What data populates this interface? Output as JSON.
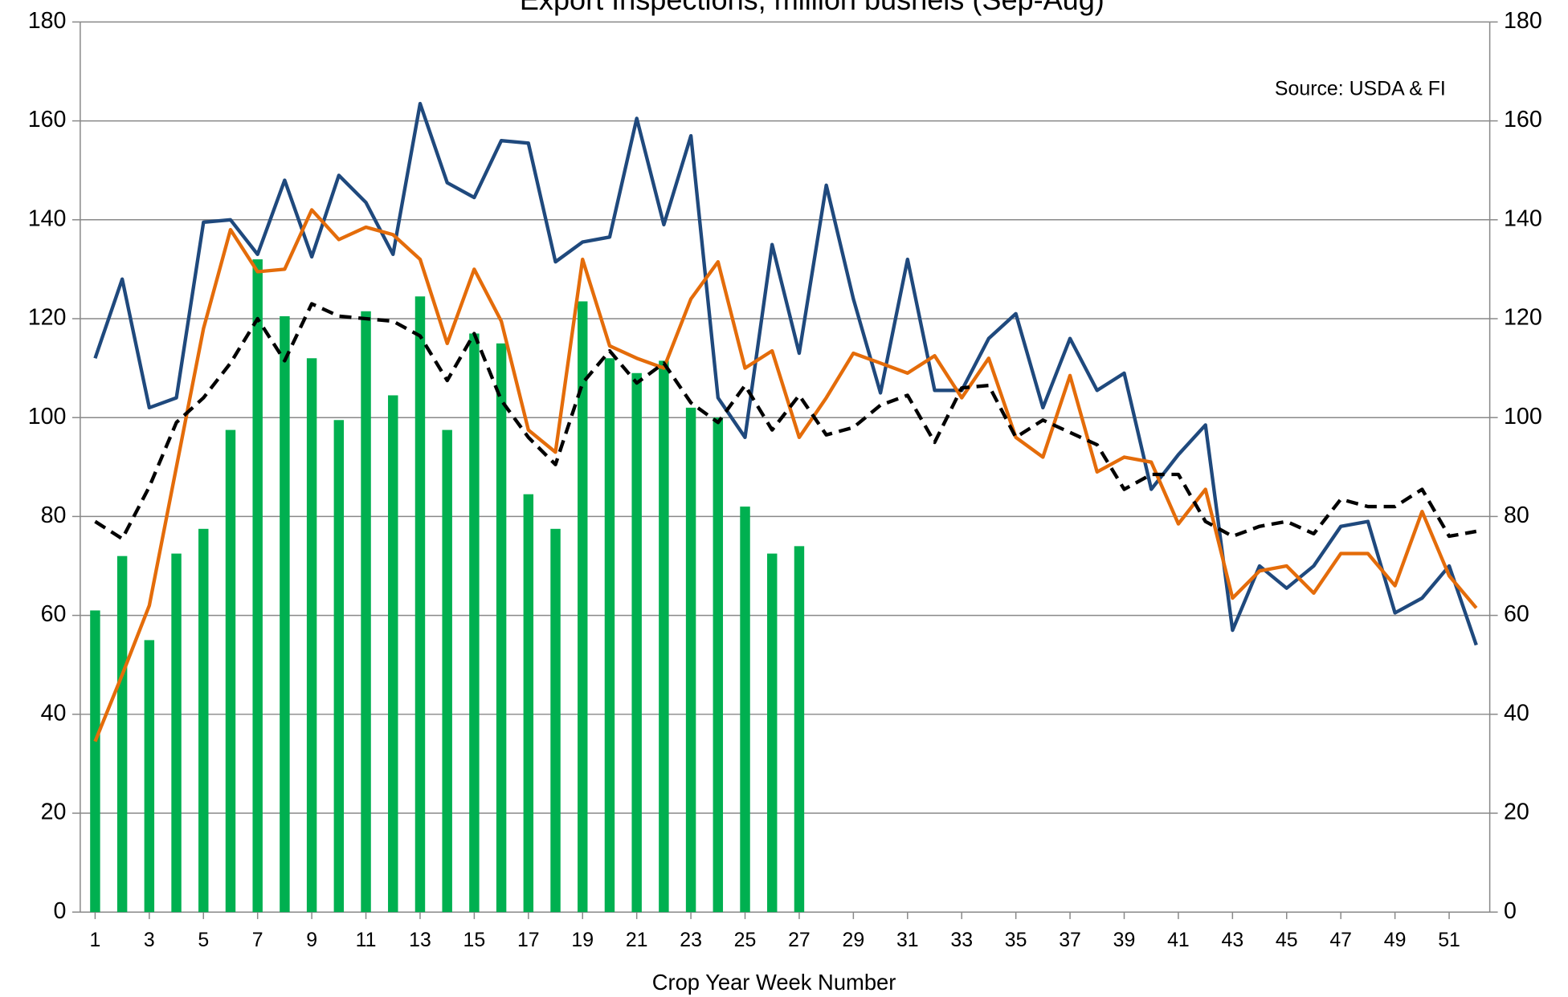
{
  "chart_data": {
    "type": "bar-line",
    "title": "Export Inspections, million bushels (Sep-Aug)",
    "annotation": "Source: USDA & FI",
    "x_label": "Crop Year Week Number",
    "x": [
      1,
      2,
      3,
      4,
      5,
      6,
      7,
      8,
      9,
      10,
      11,
      12,
      13,
      14,
      15,
      16,
      17,
      18,
      19,
      20,
      21,
      22,
      23,
      24,
      25,
      26,
      27,
      28,
      29,
      30,
      31,
      32,
      33,
      34,
      35,
      36,
      37,
      38,
      39,
      40,
      41,
      42,
      43,
      44,
      45,
      46,
      47,
      48,
      49,
      50,
      51,
      52
    ],
    "xlim": [
      0.45,
      52.5
    ],
    "xticks": [
      1,
      3,
      5,
      7,
      9,
      11,
      13,
      15,
      17,
      19,
      21,
      23,
      25,
      27,
      29,
      31,
      33,
      35,
      37,
      39,
      41,
      43,
      45,
      47,
      49,
      51
    ],
    "ylim": [
      0,
      180
    ],
    "yticks": [
      0,
      20,
      40,
      60,
      80,
      100,
      120,
      140,
      160,
      180
    ],
    "y2lim": [
      0,
      180
    ],
    "y2ticks": [
      0,
      20,
      40,
      60,
      80,
      100,
      120,
      140,
      160,
      180
    ],
    "grid": true,
    "series": [
      {
        "kind": "bar",
        "color": "#00b050",
        "values": [
          61,
          72,
          55,
          72.5,
          77.5,
          97.5,
          132,
          120.5,
          112,
          99.5,
          121.5,
          104.5,
          124.5,
          97.5,
          117,
          115,
          84.5,
          77.5,
          123.5,
          112,
          109,
          111.5,
          102,
          100,
          82,
          72.5,
          74,
          null,
          null,
          null,
          null,
          null,
          null,
          null,
          null,
          null,
          null,
          null,
          null,
          null,
          null,
          null,
          null,
          null,
          null,
          null,
          null,
          null,
          null,
          null,
          null,
          null
        ]
      },
      {
        "kind": "line",
        "color": "#1f497d",
        "values": [
          112,
          128,
          102,
          104,
          139.5,
          140,
          133,
          148,
          132.5,
          149,
          143.5,
          133,
          163.5,
          147.5,
          144.5,
          156,
          155.5,
          131.5,
          135.5,
          136.5,
          160.5,
          139,
          157,
          104,
          96,
          135,
          113,
          147,
          124,
          105,
          132,
          105.5,
          105.5,
          116,
          121,
          102,
          116,
          105.5,
          109,
          85.5,
          92.5,
          98.5,
          57,
          70,
          65.5,
          70,
          78,
          79,
          60.5,
          63.5,
          70,
          54
        ]
      },
      {
        "kind": "line",
        "color": "#e46c0a",
        "values": [
          34.5,
          48,
          62,
          90,
          118,
          138,
          129.5,
          130,
          142,
          136,
          138.5,
          137,
          132,
          115,
          130,
          119.5,
          97.5,
          93,
          132,
          114.5,
          112,
          110,
          124,
          131.5,
          110,
          113.5,
          96,
          104,
          113,
          111,
          109,
          112.5,
          104,
          112,
          96,
          92,
          108.5,
          89,
          92,
          91,
          78.5,
          85.5,
          63.5,
          69,
          70,
          64.5,
          72.5,
          72.5,
          66,
          81,
          68,
          61.5
        ]
      },
      {
        "kind": "dashed",
        "color": "#000000",
        "values": [
          79,
          75.5,
          86,
          99,
          104,
          111,
          120,
          111.5,
          123,
          120.5,
          120,
          119.5,
          116.5,
          107.5,
          117,
          103.5,
          96,
          90.5,
          107,
          113.5,
          107,
          111,
          103,
          99,
          106.5,
          97.5,
          104.5,
          96.5,
          98,
          102.5,
          104.5,
          95,
          106,
          106.5,
          96,
          99.5,
          97,
          94.5,
          85.5,
          88.5,
          88.5,
          79,
          76,
          78,
          79,
          76.5,
          83.5,
          82,
          82,
          85.5,
          76,
          77
        ]
      }
    ]
  }
}
